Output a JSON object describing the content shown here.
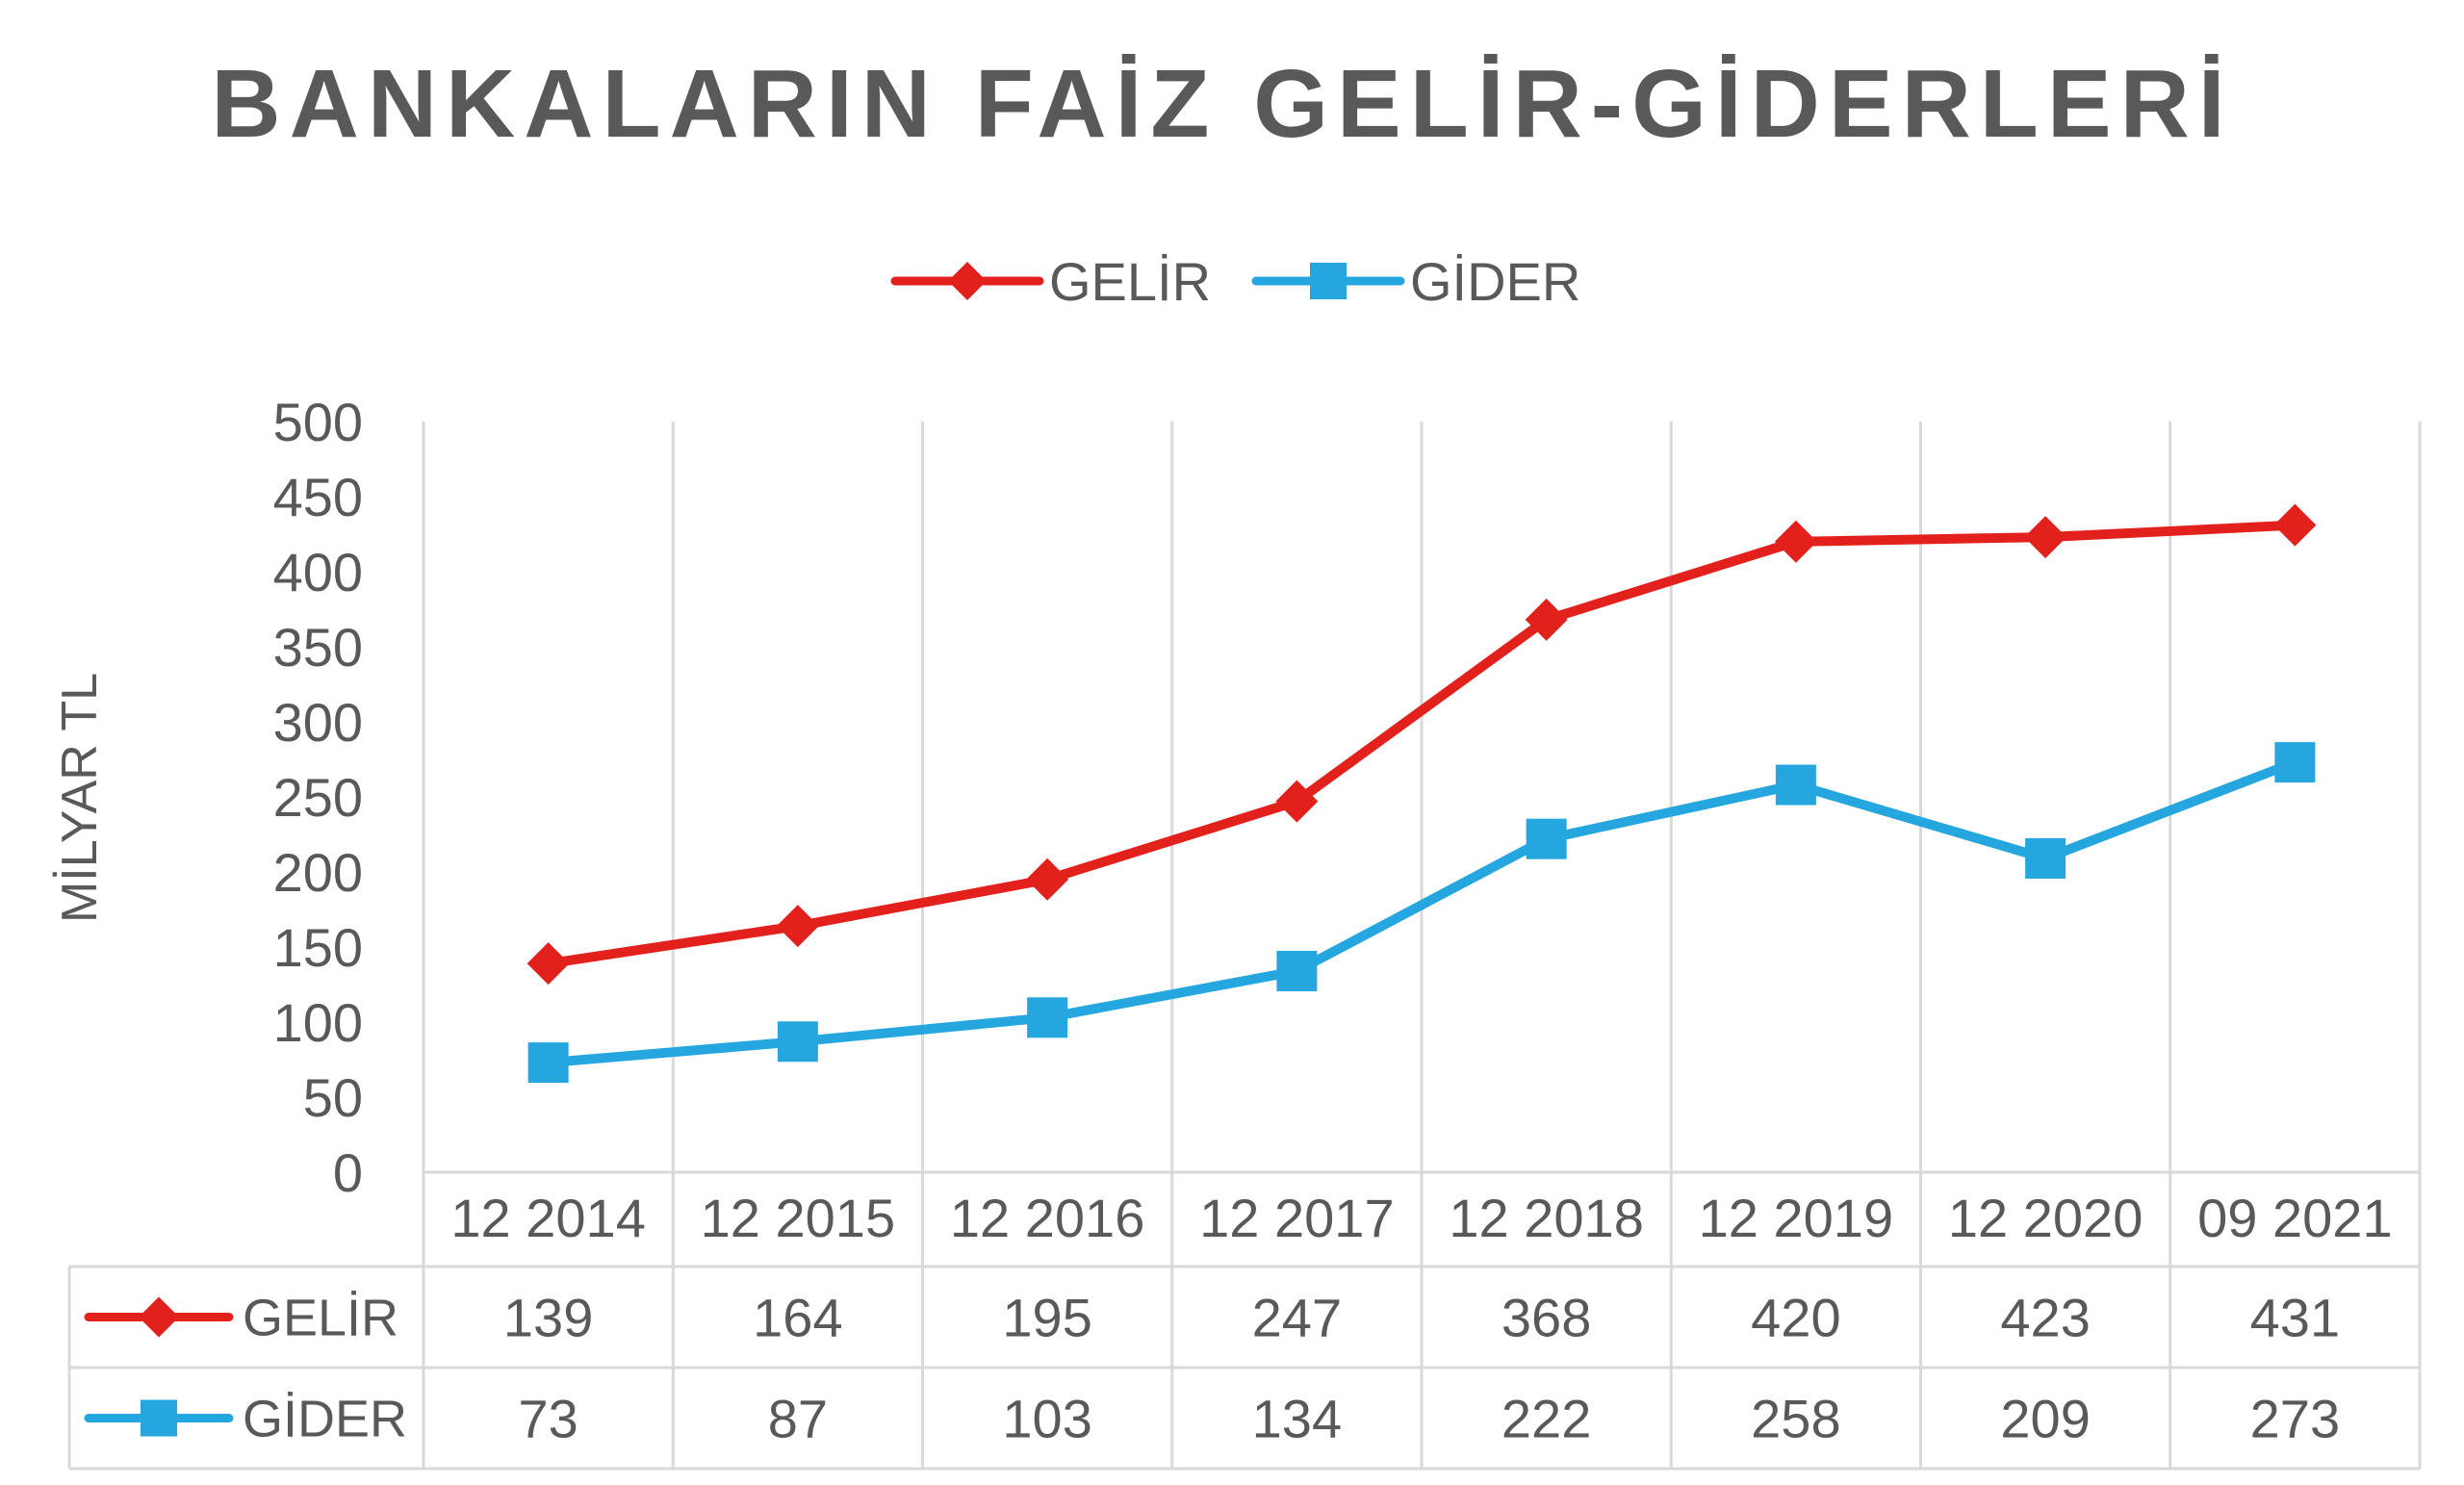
{
  "chart_data": {
    "type": "line",
    "title": "BANKALARIN FAİZ GELİR-GİDERLERİ",
    "ylabel": "MİLYAR TL",
    "xlabel": "",
    "ylim": [
      0,
      500
    ],
    "yticks": [
      0,
      50,
      100,
      150,
      200,
      250,
      300,
      350,
      400,
      450,
      500
    ],
    "grid": true,
    "legend_position": "top-center",
    "categories": [
      "12 2014",
      "12 2015",
      "12 2016",
      "12 2017",
      "12 2018",
      "12 2019",
      "12 2020",
      "09 2021"
    ],
    "series": [
      {
        "name": "GELİR",
        "color": "#E3211C",
        "marker": "diamond",
        "values": [
          139,
          164,
          195,
          247,
          368,
          420,
          423,
          431
        ]
      },
      {
        "name": "GİDER",
        "color": "#26A6DE",
        "marker": "square",
        "values": [
          73,
          87,
          103,
          134,
          222,
          258,
          209,
          273
        ]
      }
    ],
    "data_table": true
  }
}
